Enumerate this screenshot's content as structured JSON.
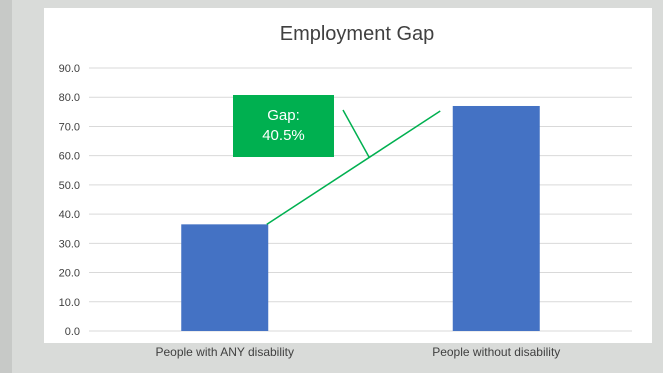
{
  "chart_data": {
    "type": "bar",
    "title": "Employment Gap",
    "xlabel": "",
    "ylabel": "",
    "categories": [
      "People with ANY disability",
      "People without disability"
    ],
    "values": [
      36.5,
      77.0
    ],
    "ylim": [
      0,
      90
    ],
    "yticks": [
      "0.0",
      "10.0",
      "20.0",
      "30.0",
      "40.0",
      "50.0",
      "60.0",
      "70.0",
      "80.0",
      "90.0"
    ],
    "bar_color": "#4472c4",
    "grid": true,
    "legend": "none",
    "annotation": {
      "label": "Gap:",
      "value": "40.5%",
      "color": "#00b050"
    }
  }
}
